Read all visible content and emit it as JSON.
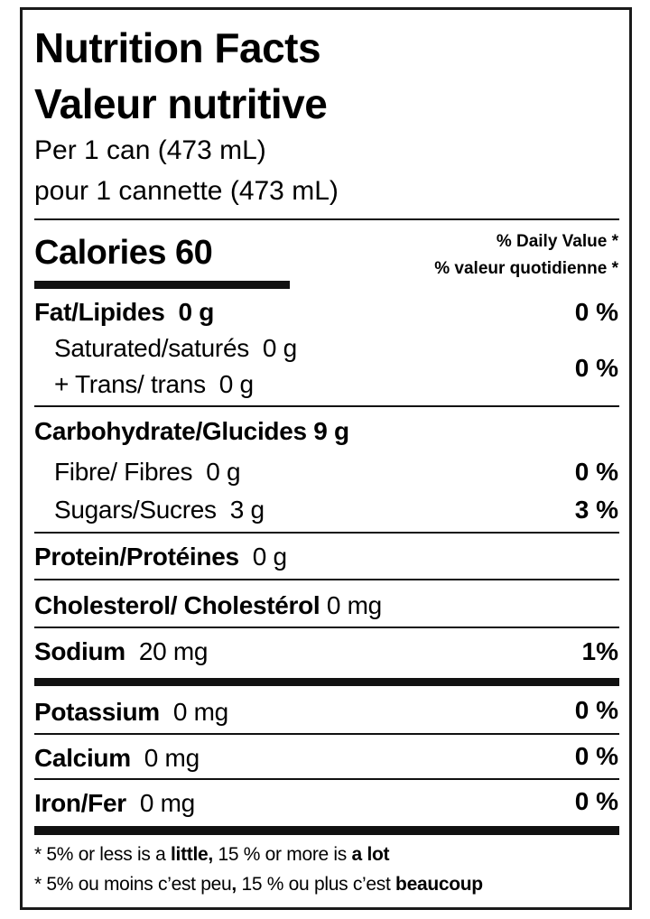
{
  "title_en": "Nutrition Facts",
  "title_fr": "Valeur nutritive",
  "serving_en": "Per 1 can (473 mL)",
  "serving_fr": "pour 1 cannette (473 mL)",
  "calories_label": "Calories 60",
  "dv_en": "% Daily Value *",
  "dv_fr": "% valeur quotidienne *",
  "rows": {
    "fat": {
      "label": "Fat/Lipides",
      "amount": "0 g",
      "dv": "0 %"
    },
    "saturated": {
      "label": "Saturated/saturés",
      "amount": "0 g"
    },
    "trans": {
      "label": "+ Trans/ trans",
      "amount": "0 g"
    },
    "sat_trans_dv": "0 %",
    "carb": {
      "label": "Carbohydrate/Glucides",
      "amount": "9 g"
    },
    "fibre": {
      "label": "Fibre/ Fibres",
      "amount": "0 g",
      "dv": "0 %"
    },
    "sugars": {
      "label": "Sugars/Sucres",
      "amount": "3 g",
      "dv": "3 %"
    },
    "protein": {
      "label": "Protein/Protéines",
      "amount": "0 g"
    },
    "cholesterol": {
      "label": "Cholesterol/ Cholestérol",
      "amount": "0 mg"
    },
    "sodium": {
      "label": "Sodium",
      "amount": "20 mg",
      "dv": "1%"
    },
    "potassium": {
      "label": "Potassium",
      "amount": "0 mg",
      "dv": "0 %"
    },
    "calcium": {
      "label": "Calcium",
      "amount": "0 mg",
      "dv": "0 %"
    },
    "iron": {
      "label": "Iron/Fer",
      "amount": "0 mg",
      "dv": "0 %"
    }
  },
  "footnote_en": {
    "a": "* 5% or less is a ",
    "b": "little,",
    "c": " 15 % or more is ",
    "d": "a lot"
  },
  "footnote_fr": {
    "a": "* 5% ou moins c’est peu",
    "b": ",",
    "c": " 15 % ou plus c’est ",
    "d": "beaucoup"
  }
}
